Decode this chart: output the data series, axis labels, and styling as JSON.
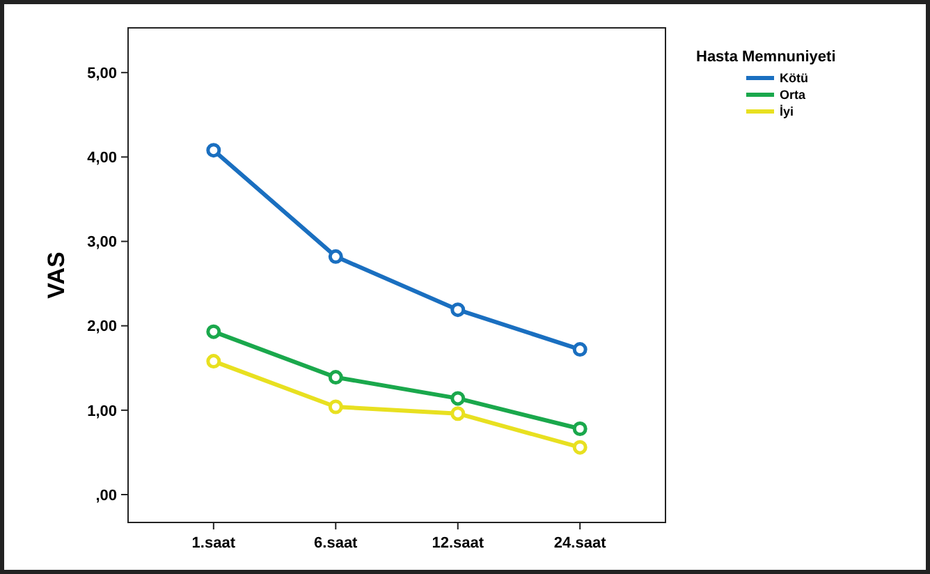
{
  "chart_data": {
    "type": "line",
    "ylabel": "VAS",
    "legend_title": "Hasta Memnuniyeti",
    "categories": [
      "1.saat",
      "6.saat",
      "12.saat",
      "24.saat"
    ],
    "series": [
      {
        "name": "Kötü",
        "color": "#1a6fc0",
        "values": [
          4.08,
          2.82,
          2.19,
          1.72
        ]
      },
      {
        "name": "Orta",
        "color": "#1aa84c",
        "values": [
          1.93,
          1.39,
          1.14,
          0.78
        ]
      },
      {
        "name": "İyi",
        "color": "#e8e020",
        "values": [
          1.58,
          1.04,
          0.96,
          0.56
        ]
      }
    ],
    "ylim": [
      -0.33,
      5.53
    ],
    "yticks": [
      {
        "value": 0,
        "label": ",00"
      },
      {
        "value": 1,
        "label": "1,00"
      },
      {
        "value": 2,
        "label": "2,00"
      },
      {
        "value": 3,
        "label": "3,00"
      },
      {
        "value": 4,
        "label": "4,00"
      },
      {
        "value": 5,
        "label": "5,00"
      }
    ],
    "marker": "circle",
    "legend": "top right",
    "grid": false
  }
}
